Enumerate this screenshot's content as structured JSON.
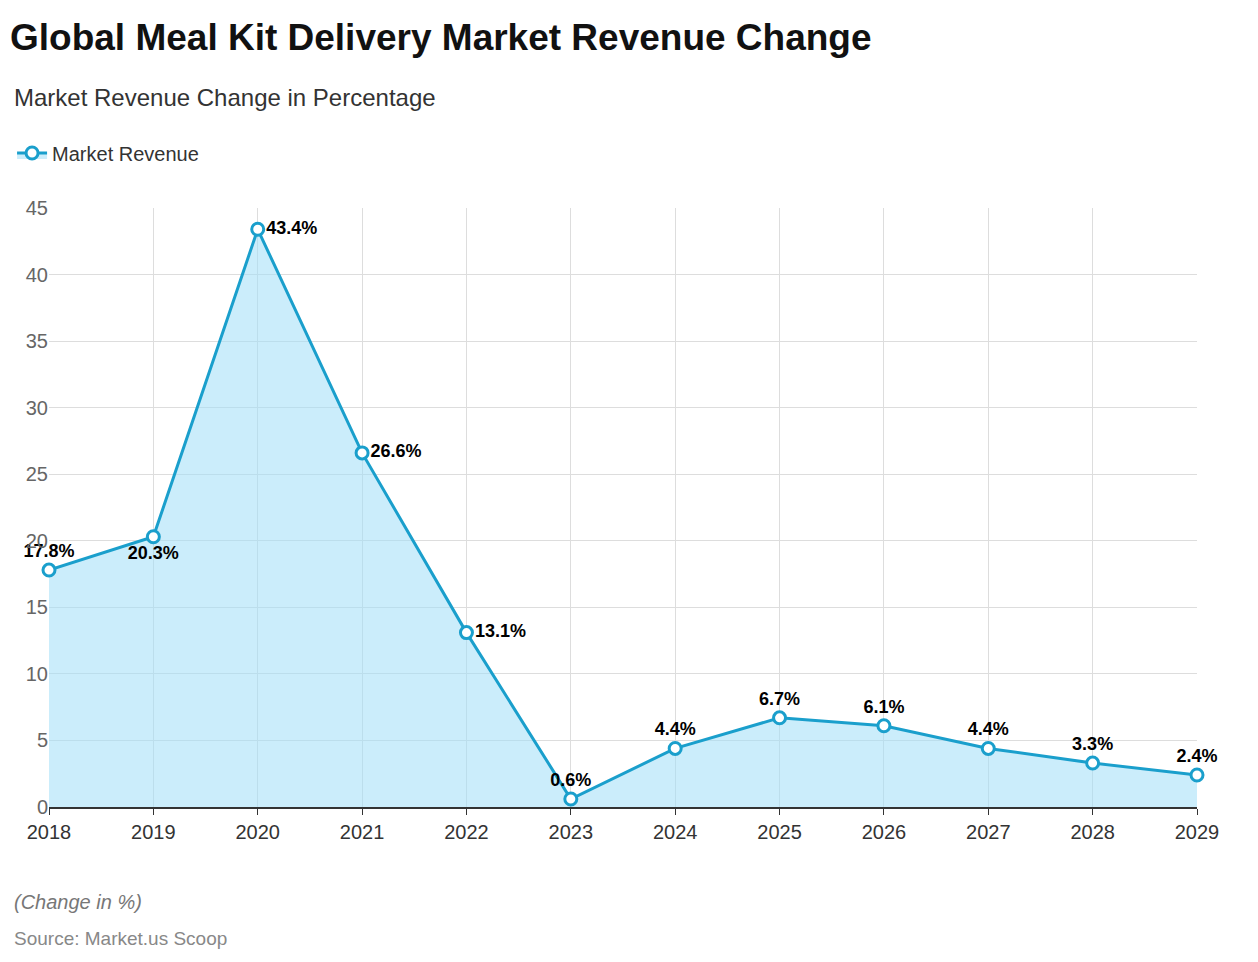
{
  "chart_data": {
    "type": "area",
    "title": "Global Meal Kit Delivery Market Revenue Change",
    "subtitle": "Market Revenue Change in Percentage",
    "note": "(Change in %)",
    "source": "Source: Market.us Scoop",
    "categories": [
      "2018",
      "2019",
      "2020",
      "2021",
      "2022",
      "2023",
      "2024",
      "2025",
      "2026",
      "2027",
      "2028",
      "2029"
    ],
    "series": [
      {
        "name": "Market Revenue",
        "color": "#1a9fcc",
        "marker": "open circle",
        "values": [
          17.8,
          20.3,
          43.4,
          26.6,
          13.1,
          0.6,
          4.4,
          6.7,
          6.1,
          4.4,
          3.3,
          2.4
        ],
        "value_labels": [
          "17.8%",
          "20.3%",
          "43.4%",
          "26.6%",
          "13.1%",
          "0.6%",
          "4.4%",
          "6.7%",
          "6.1%",
          "4.4%",
          "3.3%",
          "2.4%"
        ]
      }
    ],
    "ylim": [
      0,
      45
    ],
    "yticks": [
      0,
      5,
      10,
      15,
      20,
      25,
      30,
      35,
      40,
      45
    ],
    "grid": true,
    "legend": "top left",
    "data_labels": true
  }
}
